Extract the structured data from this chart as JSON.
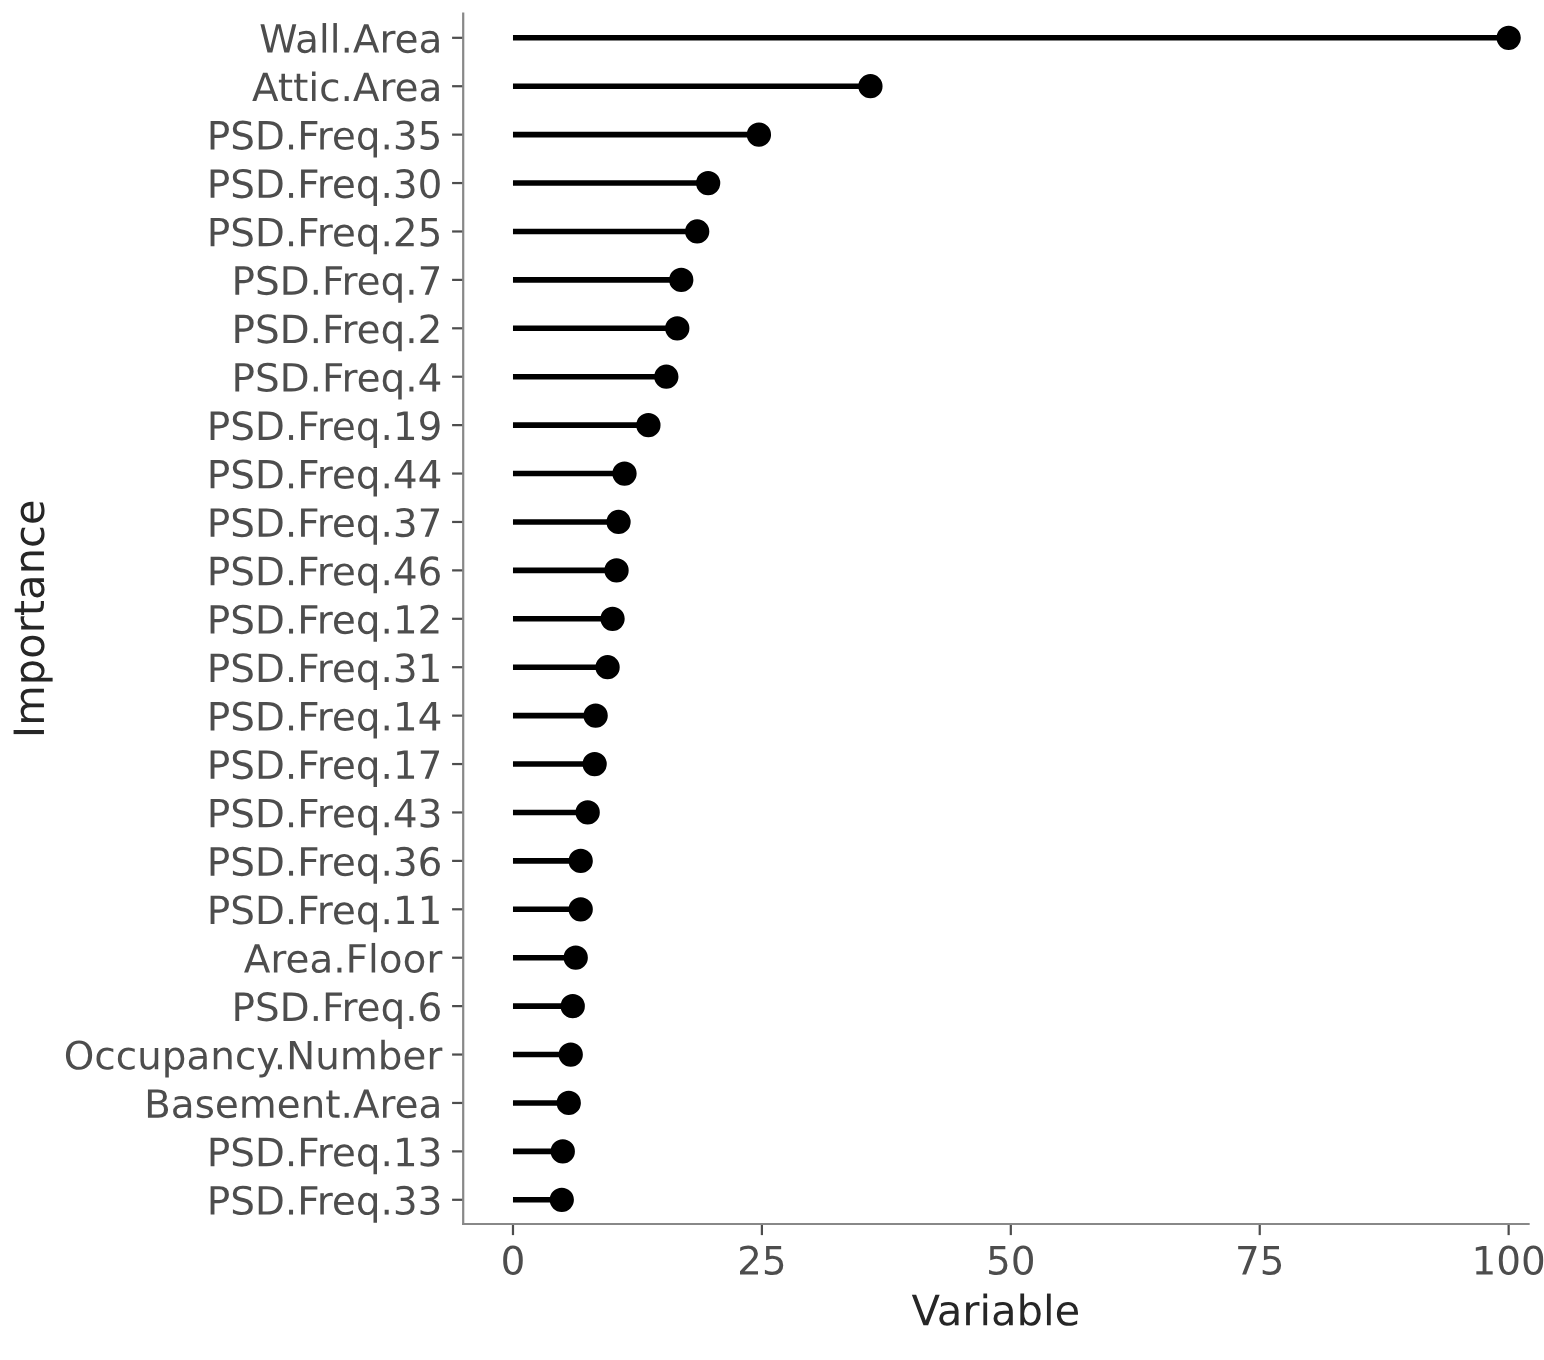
{
  "chart_data": {
    "type": "lollipop",
    "orientation": "horizontal",
    "xlabel": "Variable",
    "ylabel": "Importance",
    "categories": [
      "Wall.Area",
      "Attic.Area",
      "PSD.Freq.35",
      "PSD.Freq.30",
      "PSD.Freq.25",
      "PSD.Freq.7",
      "PSD.Freq.2",
      "PSD.Freq.4",
      "PSD.Freq.19",
      "PSD.Freq.44",
      "PSD.Freq.37",
      "PSD.Freq.46",
      "PSD.Freq.12",
      "PSD.Freq.31",
      "PSD.Freq.14",
      "PSD.Freq.17",
      "PSD.Freq.43",
      "PSD.Freq.36",
      "PSD.Freq.11",
      "Area.Floor",
      "PSD.Freq.6",
      "Occupancy.Number",
      "Basement.Area",
      "PSD.Freq.13",
      "PSD.Freq.33"
    ],
    "values": [
      100,
      35.9,
      24.7,
      19.6,
      18.5,
      16.9,
      16.5,
      15.4,
      13.6,
      11.2,
      10.6,
      10.4,
      10.0,
      9.5,
      8.3,
      8.2,
      7.5,
      6.8,
      6.8,
      6.3,
      6.0,
      5.8,
      5.6,
      5.0,
      4.9
    ],
    "color": "#000000",
    "marker": "circle",
    "xlim": [
      -5,
      102
    ],
    "xticks": [
      0,
      25,
      50,
      75,
      100
    ],
    "legend": false
  }
}
